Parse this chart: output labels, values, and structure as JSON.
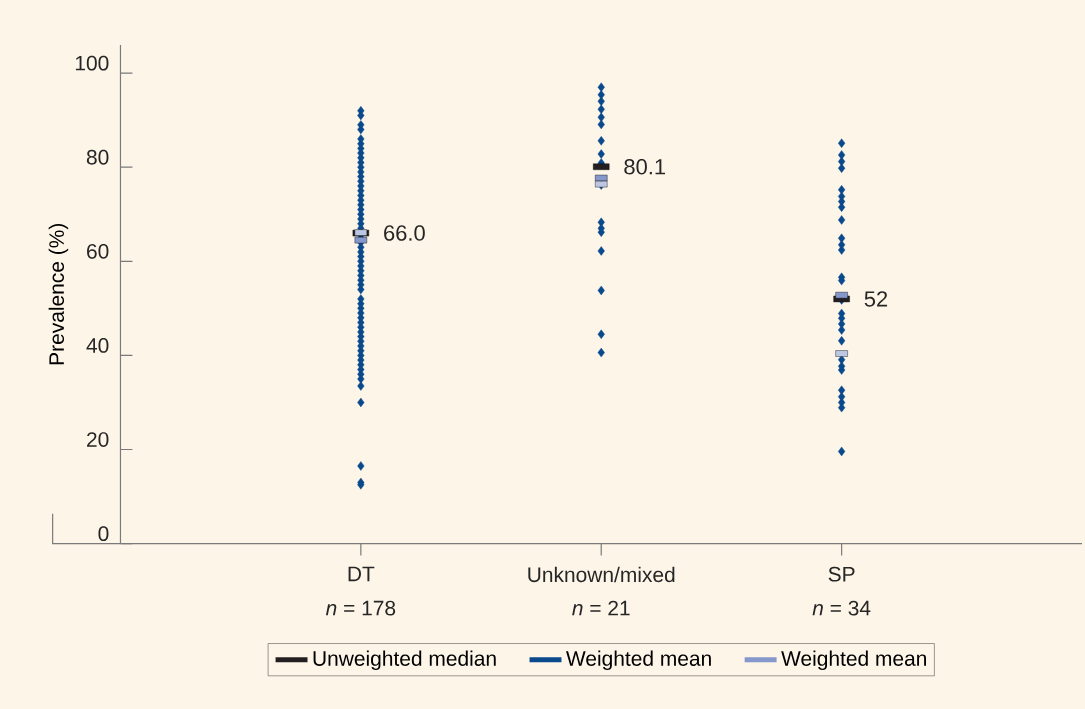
{
  "chart_data": {
    "type": "scatter",
    "categories": [
      "DT",
      "Unknown/mixed",
      "SP"
    ],
    "annotations": [
      "*n* = 178",
      "*n* = 21",
      "*n* = 34"
    ],
    "ylabel": "Prevalence (%)",
    "ylim": [
      0,
      106
    ],
    "yticks": [
      0,
      20,
      40,
      60,
      80,
      100
    ],
    "legend": "bottom",
    "series": [
      {
        "name": "Unweighted median",
        "color": "#231f20",
        "marker": "square",
        "values": [
          66.0,
          80.1,
          52
        ],
        "value_labels": [
          "66.0",
          "80.1",
          "52"
        ]
      },
      {
        "name": "Weighted mean",
        "color": "#0a4a8c",
        "marker": "diamond",
        "x": [
          "DT",
          "DT",
          "DT",
          "DT",
          "DT",
          "DT",
          "DT",
          "DT",
          "DT",
          "DT",
          "DT",
          "DT",
          "DT",
          "DT",
          "DT",
          "DT",
          "DT",
          "DT",
          "DT",
          "DT",
          "DT",
          "DT",
          "DT",
          "DT",
          "DT",
          "DT",
          "DT",
          "DT",
          "DT",
          "DT",
          "DT",
          "DT",
          "DT",
          "DT",
          "DT",
          "DT",
          "DT",
          "DT",
          "DT",
          "DT",
          "DT",
          "DT",
          "DT",
          "DT",
          "DT",
          "DT",
          "DT",
          "DT",
          "DT",
          "DT",
          "DT",
          "DT",
          "DT",
          "DT",
          "DT",
          "DT",
          "DT",
          "DT",
          "DT",
          "Unknown/mixed",
          "Unknown/mixed",
          "Unknown/mixed",
          "Unknown/mixed",
          "Unknown/mixed",
          "Unknown/mixed",
          "Unknown/mixed",
          "Unknown/mixed",
          "Unknown/mixed",
          "Unknown/mixed",
          "Unknown/mixed",
          "Unknown/mixed",
          "Unknown/mixed",
          "Unknown/mixed",
          "Unknown/mixed",
          "Unknown/mixed",
          "Unknown/mixed",
          "SP",
          "SP",
          "SP",
          "SP",
          "SP",
          "SP",
          "SP",
          "SP",
          "SP",
          "SP",
          "SP",
          "SP",
          "SP",
          "SP",
          "SP",
          "SP",
          "SP",
          "SP",
          "SP",
          "SP",
          "SP",
          "SP",
          "SP",
          "SP",
          "SP",
          "SP",
          "SP",
          "SP"
        ],
        "values": [
          92,
          91,
          89,
          88,
          86,
          85,
          84,
          83,
          82,
          81,
          80,
          79,
          78,
          77,
          76,
          75,
          74,
          73,
          72,
          71,
          70,
          69,
          68,
          67,
          65,
          64,
          63,
          62,
          61,
          60,
          59,
          58,
          57,
          56,
          55,
          54,
          52,
          51,
          50,
          49,
          48,
          47,
          46,
          45,
          44,
          43,
          42,
          41,
          40,
          39,
          38,
          37,
          36,
          35,
          33.5,
          30,
          16.5,
          13,
          12.5,
          97,
          95.4,
          94,
          92.3,
          90.6,
          89.1,
          85.6,
          82.8,
          80.9,
          76.2,
          68.3,
          67,
          66.2,
          62.2,
          53.8,
          44.5,
          40.6,
          85.1,
          82.6,
          81.2,
          79.8,
          75.2,
          73.8,
          72.7,
          71.5,
          68.8,
          64.9,
          63.5,
          62.4,
          56.6,
          55.9,
          51.8,
          48.9,
          47.9,
          46.7,
          45.4,
          43.1,
          39.1,
          37.7,
          36.9,
          32.6,
          31.2,
          30,
          28.9,
          19.6
        ]
      },
      {
        "name": "Weighted mean",
        "color": "#8597cb",
        "marker": "square",
        "values": [
          64.5,
          77.7,
          52.8
        ]
      },
      {
        "color": "#bcc8e3",
        "marker": "square",
        "values": [
          66.1,
          76.4,
          40.4
        ]
      }
    ]
  }
}
